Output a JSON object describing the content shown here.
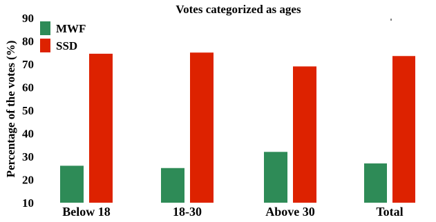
{
  "chart_data": {
    "type": "bar",
    "title": "Votes categorized as ages",
    "xlabel": "",
    "ylabel": "Percentage of the votes (%)",
    "categories": [
      "Below 18",
      "18-30",
      "Above 30",
      "Total"
    ],
    "series": [
      {
        "name": "MWF",
        "values": [
          26,
          25,
          32,
          27
        ],
        "color": "#2e8b57"
      },
      {
        "name": "SSD",
        "values": [
          74.5,
          75,
          69,
          73.5
        ],
        "color": "#dd2200"
      }
    ],
    "ylim": [
      10,
      90
    ],
    "yticks": [
      10,
      20,
      30,
      40,
      50,
      60,
      70,
      80,
      90
    ],
    "grid": false,
    "legend": "top-left"
  }
}
